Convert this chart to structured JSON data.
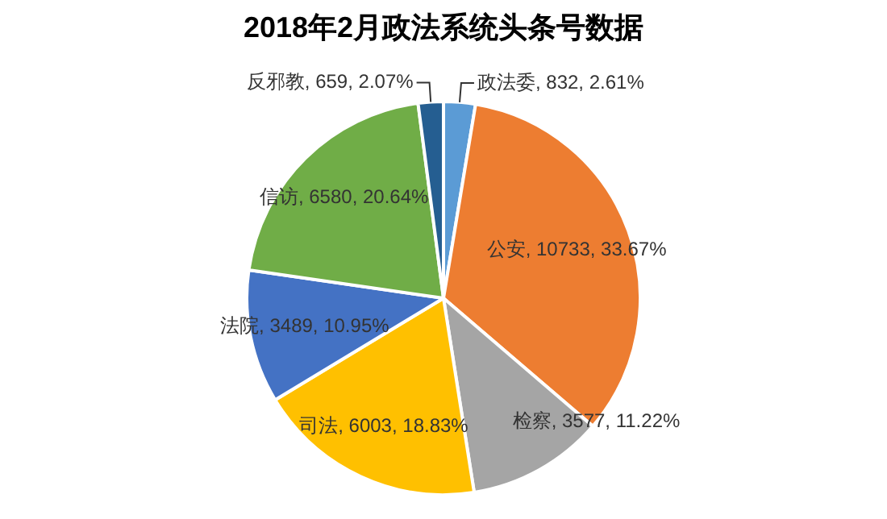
{
  "chart_data": {
    "type": "pie",
    "title": "2018年2月政法系统头条号数据",
    "categories": [
      "政法委",
      "公安",
      "检察",
      "司法",
      "法院",
      "信访",
      "反邪教"
    ],
    "values": [
      832,
      10733,
      3577,
      6003,
      3489,
      6580,
      659
    ],
    "value_labels": [
      "832, 2.61%",
      "10733, 33.67%",
      "3577, 11.22%",
      "6003, 18.83%",
      "3489, 10.95%",
      "6580, 20.64%",
      "659, 2.07%"
    ],
    "colors": [
      "#5b9bd5",
      "#ed7d31",
      "#a5a5a5",
      "#ffc000",
      "#4472c4",
      "#70ad47",
      "#255e91"
    ],
    "legend": false
  }
}
